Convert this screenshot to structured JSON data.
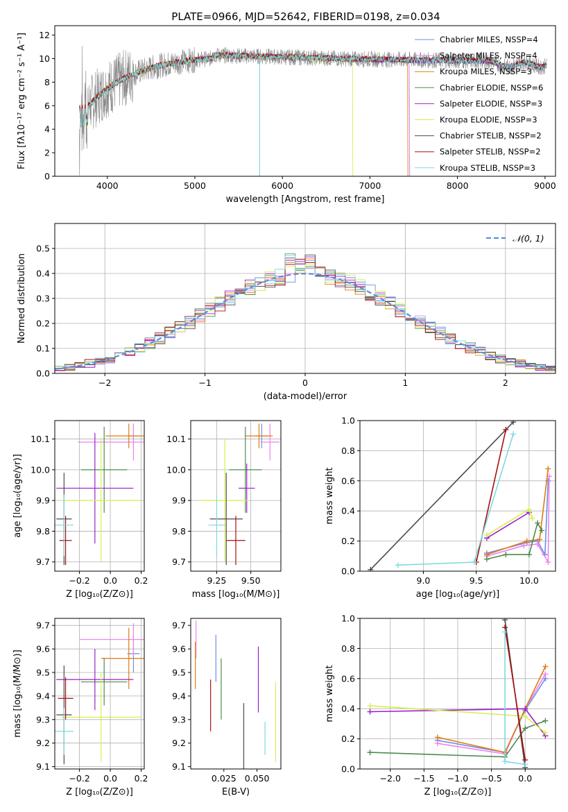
{
  "colors": {
    "Chabrier MILES": "#6b8fe3",
    "Salpeter MILES": "#ee82ee",
    "Kroupa MILES": "#e07a12",
    "Chabrier ELODIE": "#4e8a4e",
    "Salpeter ELODIE": "#9b1fc7",
    "Kroupa ELODIE": "#d6ee50",
    "Chabrier STELIB": "#4a4a4a",
    "Salpeter STELIB": "#a80f0f",
    "Kroupa STELIB": "#7fd9dd",
    "normal": "#5a8fd8",
    "grid": "#b0b0b0"
  },
  "chart_data": [
    {
      "id": "spectrum",
      "type": "line",
      "title": "PLATE=0966, MJD=52642, FIBERID=0198, z=0.034",
      "xlabel": "wavelength [Angstrom, rest frame]",
      "ylabel": "Flux [fλ10⁻¹⁷ erg cm⁻² s⁻¹ A⁻¹]",
      "xlim": [
        3400,
        9120
      ],
      "ylim": [
        0,
        12.8
      ],
      "xticks": [
        4000,
        5000,
        6000,
        7000,
        8000,
        9000
      ],
      "yticks": [
        0,
        2,
        4,
        6,
        8,
        10,
        12
      ],
      "grid": false,
      "legend_position": "top-right",
      "series": [
        {
          "name": "Chabrier MILES, N$_{SSP}$=4",
          "legend": "Chabrier MILES, NSSP=4",
          "x": [
            3680,
            7450
          ],
          "y": [
            5.2,
            10.3
          ]
        },
        {
          "name": "Salpeter MILES, NSSP=4",
          "x": [
            3680,
            7450
          ],
          "y": [
            5.1,
            10.2
          ]
        },
        {
          "name": "Kroupa MILES, NSSP=3",
          "x": [
            3680,
            7430
          ],
          "y": [
            5.0,
            10.2
          ]
        },
        {
          "name": "Chabrier ELODIE, NSSP=6",
          "x": [
            3680,
            9020
          ],
          "y": [
            5.1,
            9.6
          ]
        },
        {
          "name": "Salpeter ELODIE, NSSP=3",
          "x": [
            3680,
            9020
          ],
          "y": [
            5.0,
            9.5
          ]
        },
        {
          "name": "Kroupa ELODIE, NSSP=3",
          "x": [
            3680,
            6800
          ],
          "y": [
            5.0,
            10.3
          ]
        },
        {
          "name": "Chabrier STELIB, NSSP=2",
          "x": [
            3680,
            9000
          ],
          "y": [
            5.0,
            9.5
          ]
        },
        {
          "name": "Salpeter STELIB, NSSP=2",
          "x": [
            3680,
            9020
          ],
          "y": [
            5.3,
            9.6
          ]
        },
        {
          "name": "Kroupa STELIB, NSSP=3",
          "x": [
            3680,
            9020
          ],
          "y": [
            5.0,
            9.7
          ]
        }
      ],
      "legend": [
        "Chabrier MILES, NSSP=4",
        "Salpeter MILES, NSSP=4",
        "Kroupa MILES, NSSP=3",
        "Chabrier ELODIE, NSSP=6",
        "Salpeter ELODIE, NSSP=3",
        "Kroupa ELODIE, NSSP=3",
        "Chabrier STELIB, NSSP=2",
        "Salpeter STELIB, NSSP=2",
        "Kroupa STELIB, NSSP=3"
      ]
    },
    {
      "id": "residuals",
      "type": "area",
      "xlabel": "(data-model)/error",
      "ylabel": "Normed distribution",
      "xlim": [
        -2.5,
        2.5
      ],
      "ylim": [
        0,
        0.6
      ],
      "xticks": [
        -2,
        -1,
        0,
        1,
        2
      ],
      "yticks": [
        0.0,
        0.1,
        0.2,
        0.3,
        0.4,
        0.5
      ],
      "grid": true,
      "legend": [
        "𝒩(0, 1)"
      ],
      "legend_position": "top-right",
      "bin_width": 0.1,
      "bin_start": -2.5
    },
    {
      "id": "z-age",
      "type": "scatter",
      "xlabel": "Z [log₁₀(Z/Z⊙)]",
      "ylabel": "age  [log₁₀(age/yr)]",
      "xlim": [
        -0.36,
        0.22
      ],
      "ylim": [
        9.67,
        10.16
      ],
      "xticks": [
        -0.2,
        0.0,
        0.2
      ],
      "yticks": [
        9.7,
        9.8,
        9.9,
        10.0,
        10.1
      ],
      "grid": true,
      "points": [
        {
          "series": "Chabrier MILES",
          "x": 0.15,
          "y": 10.11,
          "xerr": 0.04,
          "yerr": 0.04
        },
        {
          "series": "Salpeter MILES",
          "x": 0.15,
          "y": 10.09,
          "xerr": 0.36,
          "yerr": 0.06
        },
        {
          "series": "Kroupa MILES",
          "x": 0.12,
          "y": 10.11,
          "xerr": 0.15,
          "yerr": 0.04
        },
        {
          "series": "Chabrier ELODIE",
          "x": -0.04,
          "y": 10.0,
          "xerr": 0.15,
          "yerr": 0.14
        },
        {
          "series": "Salpeter ELODIE",
          "x": -0.1,
          "y": 9.94,
          "xerr": 0.25,
          "yerr": 0.18
        },
        {
          "series": "Kroupa ELODIE",
          "x": -0.06,
          "y": 9.9,
          "xerr": 0.26,
          "yerr": 0.2
        },
        {
          "series": "Chabrier STELIB",
          "x": -0.3,
          "y": 9.84,
          "xerr": 0.05,
          "yerr": 0.15
        },
        {
          "series": "Salpeter STELIB",
          "x": -0.29,
          "y": 9.77,
          "xerr": 0.04,
          "yerr": 0.08
        },
        {
          "series": "Kroupa STELIB",
          "x": -0.3,
          "y": 9.82,
          "xerr": 0.06,
          "yerr": 0.1
        }
      ]
    },
    {
      "id": "mass-age",
      "type": "scatter",
      "xlabel": "mass [log₁₀(M/M⊙)]",
      "ylabel": "",
      "xlim": [
        9.06,
        9.72
      ],
      "ylim": [
        9.67,
        10.16
      ],
      "xticks": [
        9.25,
        9.5
      ],
      "xticklabels": [
        "9.25",
        "9.50"
      ],
      "yticks": [
        9.7,
        9.8,
        9.9,
        10.0,
        10.1
      ],
      "grid": true,
      "points": [
        {
          "series": "Chabrier MILES",
          "x": 9.58,
          "y": 10.11,
          "xerr": 0.05,
          "yerr": 0.04
        },
        {
          "series": "Salpeter MILES",
          "x": 9.64,
          "y": 10.09,
          "xerr": 0.07,
          "yerr": 0.06
        },
        {
          "series": "Kroupa MILES",
          "x": 9.56,
          "y": 10.11,
          "xerr": 0.1,
          "yerr": 0.04
        },
        {
          "series": "Chabrier ELODIE",
          "x": 9.46,
          "y": 10.0,
          "xerr": 0.12,
          "yerr": 0.14
        },
        {
          "series": "Salpeter ELODIE",
          "x": 9.47,
          "y": 9.94,
          "xerr": 0.06,
          "yerr": 0.08
        },
        {
          "series": "Kroupa ELODIE",
          "x": 9.31,
          "y": 9.9,
          "xerr": 0.18,
          "yerr": 0.2
        },
        {
          "series": "Chabrier STELIB",
          "x": 9.32,
          "y": 9.84,
          "xerr": 0.12,
          "yerr": 0.15
        },
        {
          "series": "Salpeter STELIB",
          "x": 9.39,
          "y": 9.77,
          "xerr": 0.07,
          "yerr": 0.08
        },
        {
          "series": "Kroupa STELIB",
          "x": 9.25,
          "y": 9.82,
          "xerr": 0.06,
          "yerr": 0.1
        }
      ]
    },
    {
      "id": "age-weight",
      "type": "line",
      "xlabel": "age  [log₁₀(age/yr)]",
      "ylabel": "mass weight",
      "xlim": [
        8.4,
        10.25
      ],
      "ylim": [
        0,
        1.0
      ],
      "xticks": [
        9.0,
        9.5,
        10.0
      ],
      "yticks": [
        0.0,
        0.2,
        0.4,
        0.6,
        0.8,
        1.0
      ],
      "grid": true,
      "series": [
        {
          "name": "Chabrier MILES",
          "x": [
            9.6,
            9.98,
            10.08,
            10.15,
            10.18
          ],
          "y": [
            0.12,
            0.19,
            0.2,
            0.11,
            0.6
          ]
        },
        {
          "name": "Salpeter MILES",
          "x": [
            9.6,
            9.95,
            10.08,
            10.18,
            10.19
          ],
          "y": [
            0.1,
            0.17,
            0.18,
            0.06,
            0.63
          ]
        },
        {
          "name": "Kroupa MILES",
          "x": [
            9.6,
            9.98,
            10.1,
            10.18
          ],
          "y": [
            0.11,
            0.2,
            0.21,
            0.68
          ]
        },
        {
          "name": "Chabrier ELODIE",
          "x": [
            9.6,
            9.78,
            10.0,
            10.08,
            10.12
          ],
          "y": [
            0.08,
            0.11,
            0.11,
            0.32,
            0.27
          ]
        },
        {
          "name": "Salpeter ELODIE",
          "x": [
            9.6,
            10.0
          ],
          "y": [
            0.22,
            0.39
          ]
        },
        {
          "name": "Kroupa ELODIE",
          "x": [
            9.6,
            10.0,
            10.03
          ],
          "y": [
            0.24,
            0.41,
            0.35
          ]
        },
        {
          "name": "Chabrier STELIB",
          "x": [
            8.5,
            9.85
          ],
          "y": [
            0.01,
            0.99
          ]
        },
        {
          "name": "Salpeter STELIB",
          "x": [
            9.5,
            9.78
          ],
          "y": [
            0.06,
            0.94
          ]
        },
        {
          "name": "Kroupa STELIB",
          "x": [
            8.76,
            9.48,
            9.85
          ],
          "y": [
            0.04,
            0.06,
            0.91
          ]
        }
      ]
    },
    {
      "id": "z-mass",
      "type": "scatter",
      "xlabel": "Z [log₁₀(Z/Z⊙)]",
      "ylabel": "mass [log₁₀(M/M⊙)]",
      "xlim": [
        -0.36,
        0.22
      ],
      "ylim": [
        9.09,
        9.73
      ],
      "xticks": [
        -0.2,
        0.0,
        0.2
      ],
      "yticks": [
        9.1,
        9.2,
        9.3,
        9.4,
        9.5,
        9.6,
        9.7
      ],
      "grid": true,
      "points": [
        {
          "series": "Chabrier MILES",
          "x": 0.15,
          "y": 9.58,
          "xerr": 0.04,
          "yerr": 0.08
        },
        {
          "series": "Salpeter MILES",
          "x": 0.15,
          "y": 9.64,
          "xerr": 0.35,
          "yerr": 0.07
        },
        {
          "series": "Kroupa MILES",
          "x": 0.12,
          "y": 9.56,
          "xerr": 0.18,
          "yerr": 0.13
        },
        {
          "series": "Chabrier ELODIE",
          "x": -0.04,
          "y": 9.46,
          "xerr": 0.15,
          "yerr": 0.1
        },
        {
          "series": "Salpeter ELODIE",
          "x": -0.1,
          "y": 9.47,
          "xerr": 0.25,
          "yerr": 0.13
        },
        {
          "series": "Kroupa ELODIE",
          "x": -0.06,
          "y": 9.31,
          "xerr": 0.26,
          "yerr": 0.19
        },
        {
          "series": "Chabrier STELIB",
          "x": -0.3,
          "y": 9.32,
          "xerr": 0.05,
          "yerr": 0.21
        },
        {
          "series": "Salpeter STELIB",
          "x": -0.29,
          "y": 9.39,
          "xerr": 0.05,
          "yerr": 0.09
        },
        {
          "series": "Kroupa STELIB",
          "x": -0.3,
          "y": 9.25,
          "xerr": 0.06,
          "yerr": 0.1
        }
      ]
    },
    {
      "id": "ebv-mass",
      "type": "scatter",
      "xlabel": "E(B-V)",
      "ylabel": "",
      "xlim": [
        0.0,
        0.068
      ],
      "ylim": [
        9.09,
        9.73
      ],
      "xticks": [
        0.025,
        0.05
      ],
      "xticklabels": [
        "0.025",
        "0.050"
      ],
      "yticks": [
        9.1,
        9.2,
        9.3,
        9.4,
        9.5,
        9.6,
        9.7
      ],
      "grid": false,
      "points": [
        {
          "series": "Chabrier MILES",
          "x": 0.019,
          "y": 9.56,
          "yerr": 0.1
        },
        {
          "series": "Salpeter MILES",
          "x": 0.004,
          "y": 9.64,
          "yerr": 0.08
        },
        {
          "series": "Kroupa MILES",
          "x": 0.0035,
          "y": 9.53,
          "yerr": 0.1
        },
        {
          "series": "Chabrier ELODIE",
          "x": 0.023,
          "y": 9.43,
          "yerr": 0.13
        },
        {
          "series": "Salpeter ELODIE",
          "x": 0.051,
          "y": 9.47,
          "yerr": 0.14
        },
        {
          "series": "Kroupa ELODIE",
          "x": 0.064,
          "y": 9.29,
          "yerr": 0.17
        },
        {
          "series": "Chabrier STELIB",
          "x": 0.04,
          "y": 9.2,
          "yerr": 0.17
        },
        {
          "series": "Salpeter STELIB",
          "x": 0.015,
          "y": 9.36,
          "yerr": 0.11
        },
        {
          "series": "Kroupa STELIB",
          "x": 0.056,
          "y": 9.22,
          "yerr": 0.07
        }
      ]
    },
    {
      "id": "z-weight",
      "type": "line",
      "xlabel": "Z [log₁₀(Z/Z⊙)]",
      "ylabel": "mass weight",
      "xlim": [
        -2.45,
        0.45
      ],
      "ylim": [
        0,
        1.0
      ],
      "xticks": [
        -2.0,
        -1.5,
        -1.0,
        -0.5,
        0.0
      ],
      "yticks": [
        0.0,
        0.2,
        0.4,
        0.6,
        0.8,
        1.0
      ],
      "grid": true,
      "series": [
        {
          "name": "Chabrier MILES",
          "x": [
            -1.3,
            -0.3,
            0.0,
            0.3
          ],
          "y": [
            0.19,
            0.11,
            0.39,
            0.6
          ]
        },
        {
          "name": "Salpeter MILES",
          "x": [
            -1.3,
            -0.3,
            0.0,
            0.3
          ],
          "y": [
            0.17,
            0.1,
            0.4,
            0.63
          ]
        },
        {
          "name": "Kroupa MILES",
          "x": [
            -1.3,
            -0.3,
            0.0,
            0.3
          ],
          "y": [
            0.21,
            0.11,
            0.4,
            0.68
          ]
        },
        {
          "name": "Chabrier ELODIE",
          "x": [
            -2.3,
            -0.3,
            0.0,
            0.3
          ],
          "y": [
            0.11,
            0.08,
            0.27,
            0.32
          ]
        },
        {
          "name": "Salpeter ELODIE",
          "x": [
            -2.3,
            0.0,
            0.3
          ],
          "y": [
            0.38,
            0.4,
            0.22
          ]
        },
        {
          "name": "Kroupa ELODIE",
          "x": [
            -2.3,
            0.0,
            0.3
          ],
          "y": [
            0.42,
            0.35,
            0.24
          ]
        },
        {
          "name": "Chabrier STELIB",
          "x": [
            -0.3,
            0.0
          ],
          "y": [
            0.99,
            0.01
          ]
        },
        {
          "name": "Salpeter STELIB",
          "x": [
            -0.3,
            0.0
          ],
          "y": [
            0.94,
            0.06
          ]
        },
        {
          "name": "Kroupa STELIB",
          "x": [
            -0.3,
            -0.3,
            0.0
          ],
          "y": [
            0.91,
            0.05,
            0.03
          ]
        }
      ]
    }
  ]
}
